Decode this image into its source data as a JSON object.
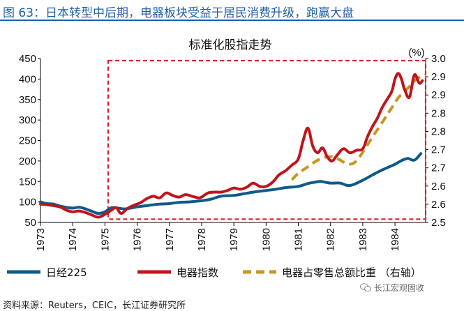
{
  "header": {
    "title": "图 63：日本转型中后期，电器板块受益于居民消费升级，跑赢大盘"
  },
  "chart_data": {
    "type": "line",
    "title": "标准化股指走势",
    "y2_unit": "(%)",
    "x_ticks": [
      "1973",
      "1974",
      "1975",
      "1976",
      "1977",
      "1978",
      "1979",
      "1980",
      "1981",
      "1982",
      "1983",
      "1984"
    ],
    "ylim": [
      50,
      450
    ],
    "y_ticks": [
      50,
      100,
      150,
      200,
      250,
      300,
      350,
      400,
      450
    ],
    "y2lim": [
      2.5,
      3.0
    ],
    "y2_ticks": [
      "2.5",
      "2.6",
      "2.6",
      "2.7",
      "2.7",
      "2.8",
      "2.8",
      "2.9",
      "2.9",
      "3.0"
    ],
    "highlight": {
      "x_start": 1975.1,
      "x_end": 1984.95,
      "y_start": 58,
      "y_end": 445,
      "color": "#d9232a"
    },
    "series": [
      {
        "name": "日经225",
        "color": "#0e5a8a",
        "axis": "left",
        "x": [
          1973.0,
          1973.2,
          1973.4,
          1973.6,
          1973.8,
          1974.0,
          1974.2,
          1974.4,
          1974.6,
          1974.8,
          1975.0,
          1975.2,
          1975.4,
          1975.6,
          1975.8,
          1976.0,
          1976.3,
          1976.6,
          1977.0,
          1977.3,
          1977.6,
          1978.0,
          1978.3,
          1978.6,
          1979.0,
          1979.3,
          1979.6,
          1980.0,
          1980.3,
          1980.6,
          1981.0,
          1981.3,
          1981.5,
          1981.7,
          1982.0,
          1982.3,
          1982.6,
          1983.0,
          1983.3,
          1983.6,
          1984.0,
          1984.2,
          1984.4,
          1984.6,
          1984.8
        ],
        "values": [
          100,
          96,
          95,
          90,
          87,
          85,
          87,
          83,
          77,
          72,
          76,
          86,
          85,
          83,
          85,
          88,
          91,
          94,
          96,
          99,
          100,
          103,
          107,
          114,
          116,
          120,
          124,
          128,
          131,
          135,
          138,
          145,
          148,
          150,
          146,
          146,
          140,
          153,
          166,
          178,
          192,
          201,
          206,
          202,
          218
        ]
      },
      {
        "name": "电器指数",
        "color": "#c0141c",
        "axis": "left",
        "x": [
          1973.0,
          1973.3,
          1973.6,
          1973.8,
          1974.0,
          1974.2,
          1974.4,
          1974.6,
          1974.8,
          1975.0,
          1975.2,
          1975.35,
          1975.5,
          1975.7,
          1975.9,
          1976.1,
          1976.3,
          1976.5,
          1976.7,
          1976.9,
          1977.1,
          1977.3,
          1977.5,
          1977.7,
          1977.9,
          1978.0,
          1978.2,
          1978.4,
          1978.6,
          1978.8,
          1979.0,
          1979.2,
          1979.4,
          1979.6,
          1979.8,
          1980.0,
          1980.2,
          1980.4,
          1980.6,
          1980.8,
          1981.0,
          1981.15,
          1981.3,
          1981.45,
          1981.6,
          1981.75,
          1981.9,
          1982.05,
          1982.2,
          1982.4,
          1982.6,
          1982.8,
          1983.0,
          1983.15,
          1983.3,
          1983.45,
          1983.6,
          1983.75,
          1983.9,
          1984.0,
          1984.1,
          1984.2,
          1984.3,
          1984.45,
          1984.6,
          1984.75,
          1984.85
        ],
        "values": [
          95,
          92,
          88,
          80,
          76,
          78,
          74,
          68,
          63,
          70,
          80,
          86,
          72,
          84,
          92,
          98,
          108,
          114,
          110,
          122,
          116,
          112,
          118,
          114,
          110,
          112,
          122,
          124,
          124,
          128,
          134,
          131,
          136,
          146,
          138,
          138,
          148,
          166,
          176,
          190,
          205,
          250,
          280,
          236,
          220,
          232,
          210,
          200,
          214,
          230,
          220,
          226,
          230,
          260,
          284,
          304,
          330,
          350,
          370,
          400,
          414,
          400,
          374,
          356,
          410,
          390,
          396
        ]
      },
      {
        "name": "电器占零售总额比重（右轴）",
        "color": "#c8961e",
        "axis": "right",
        "dashed": true,
        "x": [
          1980.8,
          1981.0,
          1981.3,
          1981.6,
          1981.9,
          1982.1,
          1982.3,
          1982.5,
          1982.7,
          1982.9,
          1983.1,
          1983.3,
          1983.5,
          1983.7,
          1983.9,
          1984.1,
          1984.3,
          1984.5,
          1984.7,
          1984.95
        ],
        "values": [
          2.63,
          2.65,
          2.67,
          2.69,
          2.7,
          2.7,
          2.69,
          2.68,
          2.68,
          2.7,
          2.73,
          2.76,
          2.79,
          2.82,
          2.85,
          2.88,
          2.9,
          2.92,
          2.94,
          2.95
        ]
      }
    ]
  },
  "legend": {
    "items": [
      {
        "label": "日经225",
        "color": "#0e5a8a"
      },
      {
        "label": "电器指数",
        "color": "#c0141c"
      },
      {
        "label": "电器占零售总额比重 （右轴）",
        "color": "#c8961e"
      }
    ]
  },
  "footer": {
    "source": "资料来源：Reuters，CEIC，长江证券研究所",
    "watermark": "长江宏观固收"
  }
}
